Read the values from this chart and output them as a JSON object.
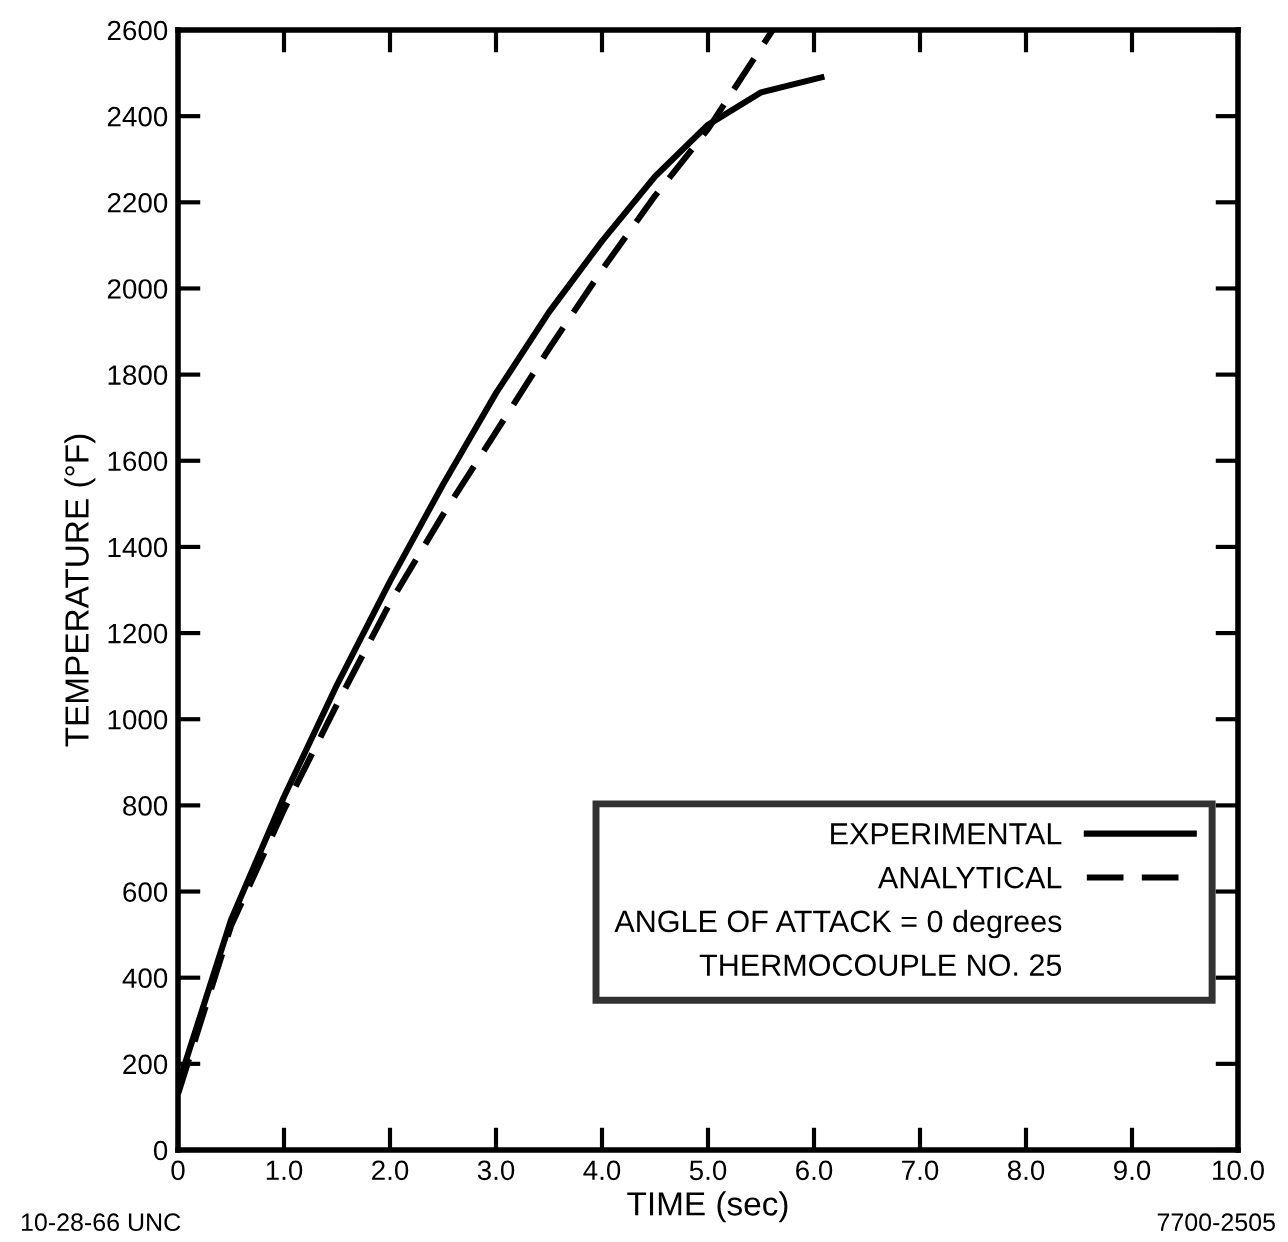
{
  "chart_data": {
    "type": "line",
    "xlabel": "TIME (sec)",
    "ylabel": "TEMPERATURE (°F)",
    "xlim": [
      0,
      10
    ],
    "ylim": [
      0,
      2600
    ],
    "xticks": [
      0,
      {
        "value": 1,
        "label": "1.0"
      },
      {
        "value": 2,
        "label": "2.0"
      },
      {
        "value": 3,
        "label": "3.0"
      },
      {
        "value": 4,
        "label": "4.0"
      },
      {
        "value": 5,
        "label": "5.0"
      },
      {
        "value": 6,
        "label": "6.0"
      },
      {
        "value": 7,
        "label": "7.0"
      },
      {
        "value": 8,
        "label": "8.0"
      },
      {
        "value": 9,
        "label": "9.0"
      },
      {
        "value": 10,
        "label": "10.0"
      }
    ],
    "yticks": [
      0,
      200,
      400,
      600,
      800,
      1000,
      1200,
      1400,
      1600,
      1800,
      2000,
      2200,
      2400,
      2600
    ],
    "grid": false,
    "legend": "bottom right",
    "series": [
      {
        "name": "EXPERIMENTAL",
        "color": "#000000",
        "line_style": "solid",
        "x": [
          0,
          0.5,
          1,
          1.5,
          2,
          2.5,
          3,
          3.5,
          4,
          4.5,
          5,
          5.5,
          6.07
        ],
        "values": [
          150,
          534,
          820,
          1080,
          1320,
          1545,
          1757,
          1945,
          2110,
          2260,
          2380,
          2455,
          2490
        ]
      },
      {
        "name": "ANALYTICAL",
        "color": "#000000",
        "line_style": "dashed",
        "x": [
          0,
          0.5,
          1,
          1.5,
          2,
          2.5,
          3,
          3.5,
          4,
          4.5,
          5,
          5.61
        ],
        "values": [
          130,
          520,
          790,
          1035,
          1270,
          1475,
          1667,
          1860,
          2043,
          2215,
          2370,
          2600
        ]
      }
    ],
    "annotations": [
      "ANGLE OF ATTACK = 0 degrees",
      "THERMOCOUPLE NO. 25",
      "10-28-66 UNC",
      "7700-2505"
    ]
  }
}
